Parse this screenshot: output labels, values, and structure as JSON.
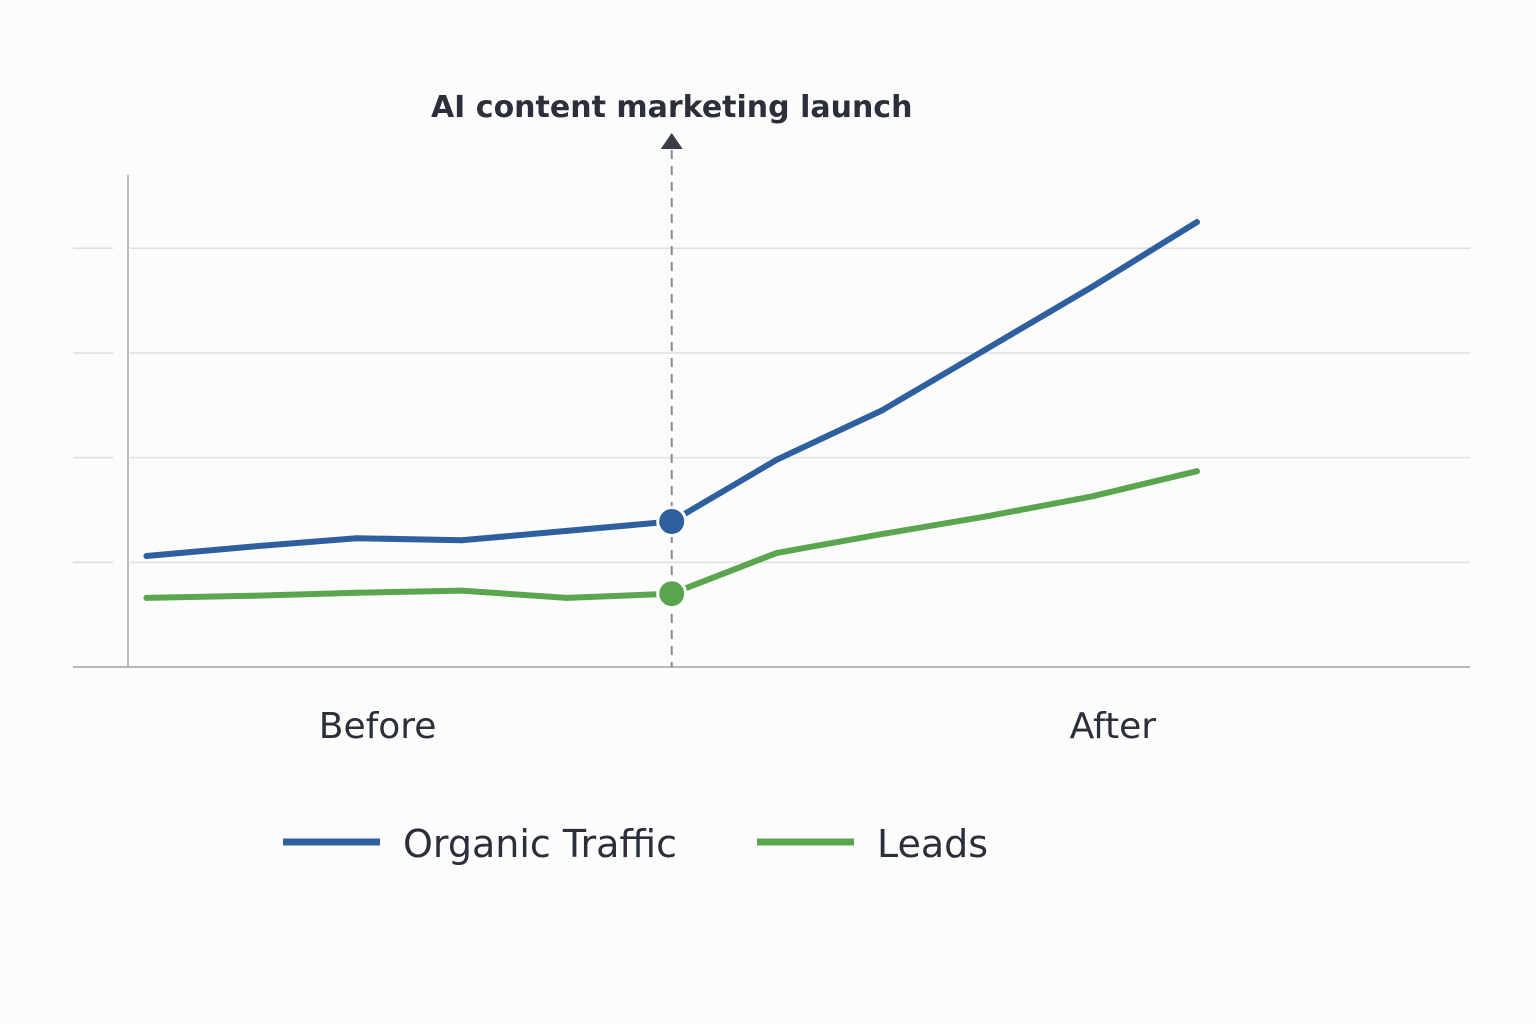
{
  "chart_data": {
    "type": "line",
    "title": "",
    "xlabel": "",
    "ylabel": "",
    "x": [
      0,
      1,
      2,
      3,
      4,
      5,
      6,
      7,
      8,
      9,
      10
    ],
    "xlim": [
      -0.7,
      12.6
    ],
    "ylim": [
      0,
      4.7
    ],
    "grid": true,
    "y_gridlines": [
      1,
      2,
      3,
      4
    ],
    "period_labels": [
      {
        "label": "Before",
        "center": 2.2
      },
      {
        "label": "After",
        "center": 9.2
      }
    ],
    "annotation": {
      "label": "AI content marketing launch",
      "x": 5,
      "style": "dashed-arrow"
    },
    "series": [
      {
        "name": "Organic Traffic",
        "color": "#2e5f9e",
        "values": [
          1.06,
          1.15,
          1.23,
          1.21,
          1.3,
          1.39,
          1.98,
          2.45,
          3.04,
          3.63,
          4.25
        ],
        "marker_at_index": 5
      },
      {
        "name": "Leads",
        "color": "#5aa64e",
        "values": [
          0.66,
          0.68,
          0.71,
          0.73,
          0.66,
          0.7,
          1.09,
          1.27,
          1.44,
          1.63,
          1.87
        ],
        "marker_at_index": 5
      }
    ],
    "legend_position": "bottom-center"
  }
}
